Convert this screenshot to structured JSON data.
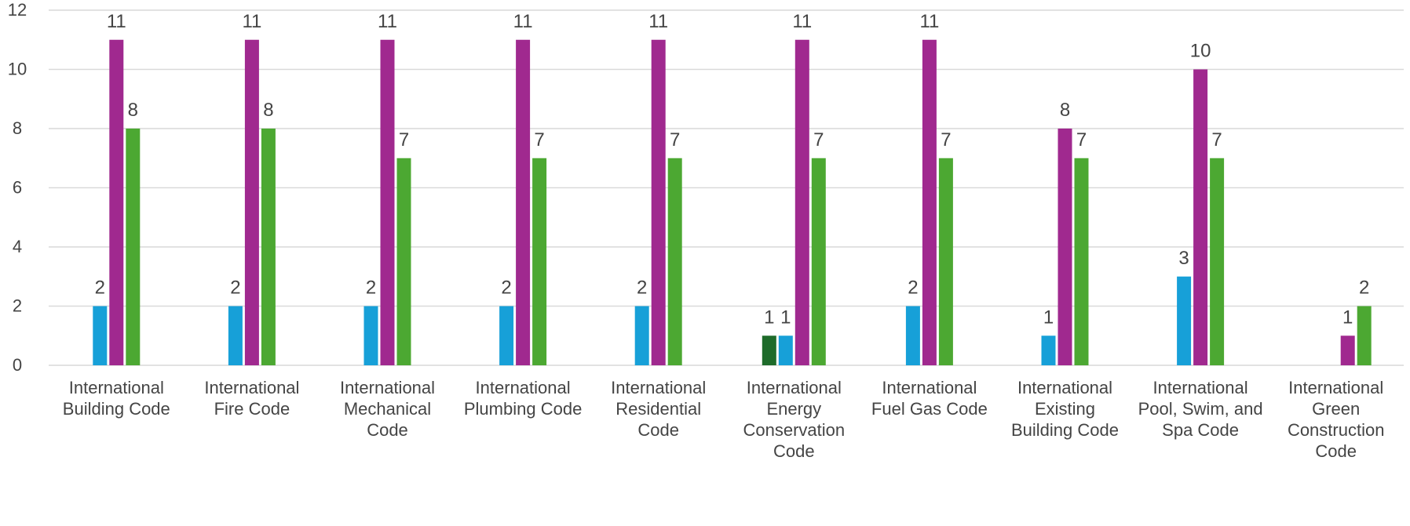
{
  "chart_data": {
    "type": "bar",
    "categories": [
      [
        "International",
        "Building Code"
      ],
      [
        "International",
        "Fire Code"
      ],
      [
        "International",
        "Mechanical",
        "Code"
      ],
      [
        "International",
        "Plumbing Code"
      ],
      [
        "International",
        "Residential",
        "Code"
      ],
      [
        "International",
        "Energy",
        "Conservation",
        "Code"
      ],
      [
        "International",
        "Fuel Gas Code"
      ],
      [
        "International",
        "Existing",
        "Building Code"
      ],
      [
        "International",
        "Pool, Swim, and",
        "Spa Code"
      ],
      [
        "International",
        "Green",
        "Construction",
        "Code"
      ]
    ],
    "series": [
      {
        "color": "#1e6b2a",
        "values": [
          null,
          null,
          null,
          null,
          null,
          1,
          null,
          null,
          null,
          null
        ]
      },
      {
        "color": "#17a0d8",
        "values": [
          2,
          2,
          2,
          2,
          2,
          1,
          2,
          1,
          3,
          null
        ]
      },
      {
        "color": "#a0298f",
        "values": [
          11,
          11,
          11,
          11,
          11,
          11,
          11,
          8,
          10,
          1
        ]
      },
      {
        "color": "#4ca832",
        "values": [
          8,
          8,
          7,
          7,
          7,
          7,
          7,
          7,
          7,
          2
        ]
      }
    ],
    "y_ticks": [
      "0",
      "2",
      "4",
      "6",
      "8",
      "10",
      "12"
    ],
    "ylim": [
      0,
      12
    ],
    "grid": true,
    "legend": "none"
  }
}
